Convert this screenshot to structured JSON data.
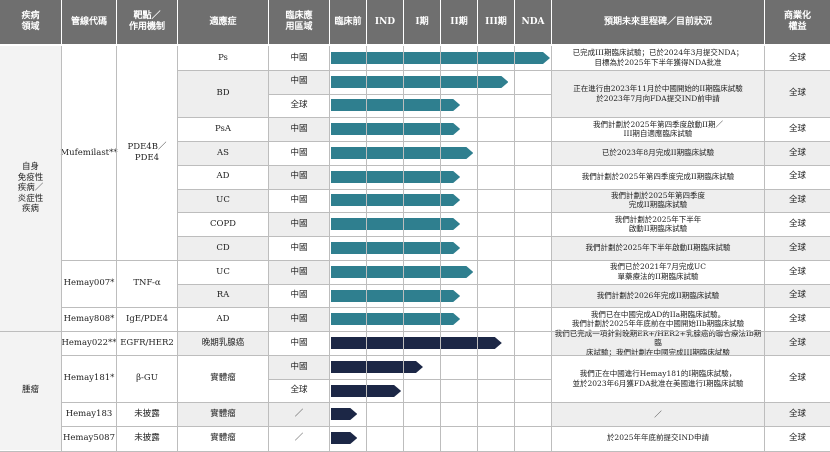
{
  "colors": {
    "header_bg": "#6f6f6f",
    "teal": "#2f7f8f",
    "navy": "#1c2746",
    "row_alt": "#eeeeee",
    "group_bg": "#f3f3f3"
  },
  "headers": {
    "disease": "疾病\n領域",
    "code": "管線代碼",
    "target": "靶點／\n作用機制",
    "indication": "適應症",
    "region": "臨床應\n用區域",
    "preclinical": "臨床前",
    "ind": "IND",
    "p1": "I期",
    "p2": "II期",
    "p3": "III期",
    "nda": "NDA",
    "milestone": "預期未來里程碑／目前狀況",
    "rights": "商業化\n權益"
  },
  "groups": [
    {
      "label": "自身\n免疫性\n疾病／\n炎症性\n疾病"
    },
    {
      "label": "腫瘤"
    }
  ],
  "drugs": [
    {
      "code": "Mufemilast**",
      "target": "PDE4B／\nPDE4"
    },
    {
      "code": "Hemay007*",
      "target": "TNF-α"
    },
    {
      "code": "Hemay808*",
      "target": "IgE/PDE4"
    },
    {
      "code": "Hemay022**",
      "target": "EGFR/HER2"
    },
    {
      "code": "Hemay181*",
      "target": "β-GU"
    },
    {
      "code": "Hemay183",
      "target": "未披露"
    },
    {
      "code": "Hemay5087",
      "target": "未披露"
    }
  ],
  "indications": [
    {
      "name": "Ps"
    },
    {
      "name": "BD"
    },
    {
      "name": "PsA"
    },
    {
      "name": "AS"
    },
    {
      "name": "AD"
    },
    {
      "name": "UC"
    },
    {
      "name": "COPD"
    },
    {
      "name": "CD"
    },
    {
      "name": "UC"
    },
    {
      "name": "RA"
    },
    {
      "name": "AD"
    },
    {
      "name": "晚期乳腺癌"
    },
    {
      "name": "實體瘤"
    },
    {
      "name": "實體瘤"
    },
    {
      "name": "實體瘤"
    }
  ],
  "rows": [
    {
      "region": "中國",
      "stage": 1.0
    },
    {
      "region": "中國",
      "stage": 0.81
    },
    {
      "region": "全球",
      "stage": 0.59
    },
    {
      "region": "中國",
      "stage": 0.59
    },
    {
      "region": "中國",
      "stage": 0.65
    },
    {
      "region": "中國",
      "stage": 0.59
    },
    {
      "region": "中國",
      "stage": 0.59
    },
    {
      "region": "中國",
      "stage": 0.59
    },
    {
      "region": "中國",
      "stage": 0.59
    },
    {
      "region": "中國",
      "stage": 0.65
    },
    {
      "region": "中國",
      "stage": 0.59
    },
    {
      "region": "中國",
      "stage": 0.59
    },
    {
      "region": "中國",
      "stage": 0.78
    },
    {
      "region": "中國",
      "stage": 0.42
    },
    {
      "region": "全球",
      "stage": 0.32
    },
    {
      "region": "／",
      "stage": 0.12
    },
    {
      "region": "／",
      "stage": 0.12
    }
  ],
  "milestones": [
    "已完成III期臨床試驗；已於2024年3月提交NDA；\n目標為於2025年下半年獲得NDA批准",
    "正在進行由2023年11月於中國開始的II期臨床試驗\n於2023年7月向FDA提交IND前申請",
    "我們計劃於2025年第四季度啟動II期／\nIII期自適應臨床試驗",
    "已於2023年8月完成II期臨床試驗",
    "我們計劃於2025年第四季度完成II期臨床試驗",
    "我們計劃於2025年第四季度\n完成II期臨床試驗",
    "我們計劃於2025年下半年\n啟動II期臨床試驗",
    "我們計劃於2025年下半年啟動II期臨床試驗",
    "我們已於2021年7月完成UC\n單藥療法的II期臨床試驗",
    "我們計劃於2026年完成II期臨床試驗",
    "我們已在中國完成AD的IIa期臨床試驗。\n我們計劃於2025年年底前在中國開始IIb期臨床試驗",
    "我們已完成一項針對晚期ER+/HER2+乳腺癌的聯合療法Ib期臨\n床試驗；我們計劃在中國完成III期臨床試驗",
    "我們正在中國進行Hemay181的I期臨床試驗，\n並於2023年6月獲FDA批准在美國進行I期臨床試驗",
    "／",
    "於2025年年底前提交IND申請"
  ],
  "rights": [
    "全球",
    "全球",
    "全球",
    "全球",
    "全球",
    "全球",
    "全球",
    "全球",
    "全球",
    "全球",
    "全球",
    "全球",
    "全球",
    "全球",
    "全球"
  ]
}
